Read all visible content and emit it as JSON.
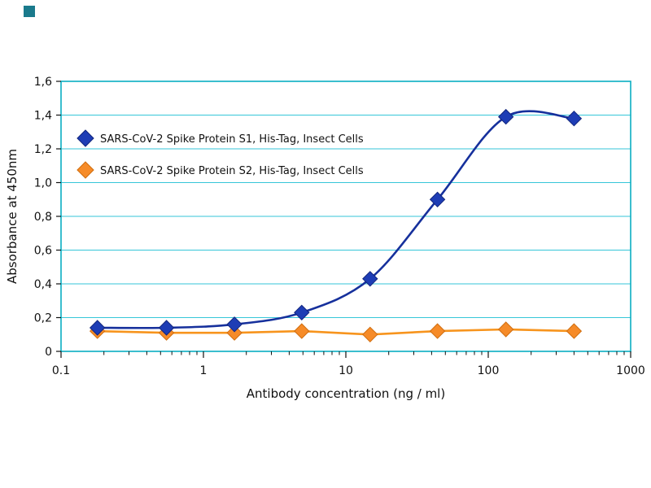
{
  "figure": {
    "background": "#ffffff",
    "corner_square_color": "#1a7a8c"
  },
  "chart_data": {
    "type": "line",
    "title": "",
    "xlabel": "Antibody concentration (ng / ml)",
    "ylabel": "Absorbance at 450nm",
    "xscale": "log",
    "xlim": [
      0.1,
      1000
    ],
    "ylim": [
      0,
      1.6
    ],
    "grid": "horizontal",
    "grid_color": "#35c6d8",
    "border_color": "#0aaec2",
    "legend_position": "upper-left",
    "x": [
      0.18,
      0.55,
      1.65,
      4.9,
      14.8,
      44,
      133,
      400
    ],
    "series": [
      {
        "name": "SARS-CoV-2 Spike Protein S1, His-Tag, Insect Cells",
        "color": "#1e3db5",
        "line_color": "#16309c",
        "marker_edge": "#12267d",
        "marker": "diamond",
        "smooth": true,
        "values": [
          0.14,
          0.14,
          0.16,
          0.23,
          0.43,
          0.9,
          1.39,
          1.38
        ]
      },
      {
        "name": "SARS-CoV-2 Spike Protein S2, His-Tag, Insect Cells",
        "color": "#f68b28",
        "line_color": "#f7941d",
        "marker_edge": "#d06d0e",
        "marker": "diamond",
        "smooth": false,
        "values": [
          0.12,
          0.11,
          0.11,
          0.12,
          0.1,
          0.12,
          0.13,
          0.12
        ]
      }
    ],
    "xticks": [
      {
        "value": 0.1,
        "label": "0.1"
      },
      {
        "value": 1,
        "label": "1"
      },
      {
        "value": 10,
        "label": "10"
      },
      {
        "value": 100,
        "label": "100"
      },
      {
        "value": 1000,
        "label": "1000"
      }
    ],
    "yticks": [
      {
        "value": 0.0,
        "label": "0"
      },
      {
        "value": 0.2,
        "label": "0,2"
      },
      {
        "value": 0.4,
        "label": "0,4"
      },
      {
        "value": 0.6,
        "label": "0,6"
      },
      {
        "value": 0.8,
        "label": "0,8"
      },
      {
        "value": 1.0,
        "label": "1,0"
      },
      {
        "value": 1.2,
        "label": "1,2"
      },
      {
        "value": 1.4,
        "label": "1,4"
      },
      {
        "value": 1.6,
        "label": "1,6"
      }
    ]
  }
}
